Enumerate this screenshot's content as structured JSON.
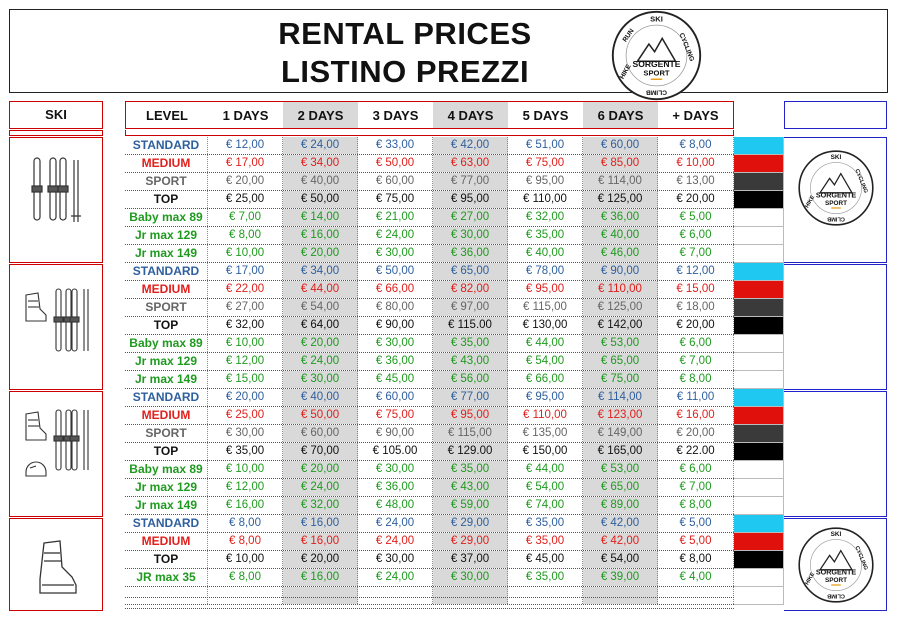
{
  "header": {
    "title_en": "RENTAL  PRICES",
    "title_it": "LISTINO  PREZZI"
  },
  "logo": {
    "top_text": "SKI",
    "right_text": "CYCLING",
    "bottom_text": "CLIMB",
    "left_text": "HIKE",
    "left_top_text": "RUN",
    "brand_line1": "SORGENTE",
    "brand_line2": "SPORT"
  },
  "side_header": "SKI",
  "columns": [
    "LEVEL",
    "1 DAYS",
    "2 DAYS",
    "3 DAYS",
    "4 DAYS",
    "5 DAYS",
    "6 DAYS",
    "+ DAYS"
  ],
  "colors": {
    "standard": "#2e5f9e",
    "medium": "#e0201c",
    "sport": "#666666",
    "top": "#111111",
    "green": "#1f9a1f",
    "swatch_cyan": "#1ec8f0",
    "swatch_red": "#e0100c",
    "swatch_dark": "#3a3a3a",
    "swatch_black": "#000000",
    "grey_column": "#d9d9d9"
  },
  "groups": [
    {
      "icon": "skis-poles-icon",
      "rows": [
        {
          "level": "STANDARD",
          "cls": "standard",
          "swatch": "cyan",
          "prices": [
            "€ 12,00",
            "€ 24,00",
            "€ 33,00",
            "€ 42,00",
            "€ 51,00",
            "€ 60,00",
            "€ 8,00"
          ]
        },
        {
          "level": "MEDIUM",
          "cls": "medium",
          "swatch": "red",
          "prices": [
            "€ 17,00",
            "€ 34,00",
            "€ 50,00",
            "€ 63,00",
            "€ 75,00",
            "€ 85,00",
            "€ 10,00"
          ]
        },
        {
          "level": "SPORT",
          "cls": "sport",
          "swatch": "dark",
          "prices": [
            "€ 20,00",
            "€ 40,00",
            "€ 60,00",
            "€ 77,00",
            "€ 95,00",
            "€ 114,00",
            "€ 13,00"
          ]
        },
        {
          "level": "TOP",
          "cls": "top",
          "swatch": "black",
          "prices": [
            "€ 25,00",
            "€ 50,00",
            "€ 75,00",
            "€ 95,00",
            "€ 110,00",
            "€ 125,00",
            "€ 20,00"
          ]
        },
        {
          "level": "Baby max 89",
          "cls": "green",
          "swatch": "",
          "prices": [
            "€ 7,00",
            "€ 14,00",
            "€ 21,00",
            "€ 27,00",
            "€ 32,00",
            "€ 36,00",
            "€ 5,00"
          ]
        },
        {
          "level": "Jr max 129",
          "cls": "green",
          "swatch": "",
          "prices": [
            "€ 8,00",
            "€ 16,00",
            "€ 24,00",
            "€ 30,00",
            "€ 35,00",
            "€ 40,00",
            "€ 6,00"
          ]
        },
        {
          "level": "Jr max 149",
          "cls": "green",
          "swatch": "",
          "prices": [
            "€ 10,00",
            "€ 20,00",
            "€ 30,00",
            "€ 36,00",
            "€ 40,00",
            "€ 46,00",
            "€ 7,00"
          ]
        }
      ]
    },
    {
      "icon": "boot-skis-poles-icon",
      "rows": [
        {
          "level": "STANDARD",
          "cls": "standard",
          "swatch": "cyan",
          "prices": [
            "€ 17,00",
            "€ 34,00",
            "€ 50,00",
            "€ 65,00",
            "€ 78,00",
            "€ 90,00",
            "€ 12,00"
          ]
        },
        {
          "level": "MEDIUM",
          "cls": "medium",
          "swatch": "red",
          "prices": [
            "€ 22,00",
            "€ 44,00",
            "€ 66,00",
            "€ 82,00",
            "€ 95,00",
            "€ 110,00",
            "€ 15,00"
          ]
        },
        {
          "level": "SPORT",
          "cls": "sport",
          "swatch": "dark",
          "prices": [
            "€ 27,00",
            "€ 54,00",
            "€ 80,00",
            "€ 97,00",
            "€ 115,00",
            "€ 125,00",
            "€ 18,00"
          ]
        },
        {
          "level": "TOP",
          "cls": "top",
          "swatch": "black",
          "prices": [
            "€ 32,00",
            "€ 64,00",
            "€ 90,00",
            "€ 115.00",
            "€ 130,00",
            "€ 142,00",
            "€ 20,00"
          ]
        },
        {
          "level": "Baby max 89",
          "cls": "green",
          "swatch": "",
          "prices": [
            "€ 10,00",
            "€ 20,00",
            "€ 30,00",
            "€ 35,00",
            "€ 44,00",
            "€ 53,00",
            "€ 6,00"
          ]
        },
        {
          "level": "Jr max 129",
          "cls": "green",
          "swatch": "",
          "prices": [
            "€ 12,00",
            "€ 24,00",
            "€ 36,00",
            "€ 43,00",
            "€ 54,00",
            "€ 65,00",
            "€ 7,00"
          ]
        },
        {
          "level": "Jr max 149",
          "cls": "green",
          "swatch": "",
          "prices": [
            "€ 15,00",
            "€ 30,00",
            "€ 45,00",
            "€ 56,00",
            "€ 66,00",
            "€ 75,00",
            "€ 8,00"
          ]
        }
      ]
    },
    {
      "icon": "boot-helmet-skis-poles-icon",
      "rows": [
        {
          "level": "STANDARD",
          "cls": "standard",
          "swatch": "cyan",
          "prices": [
            "€ 20,00",
            "€ 40,00",
            "€ 60,00",
            "€ 77,00",
            "€ 95,00",
            "€ 114,00",
            "€ 11,00"
          ]
        },
        {
          "level": "MEDIUM",
          "cls": "medium",
          "swatch": "red",
          "prices": [
            "€ 25,00",
            "€ 50,00",
            "€ 75,00",
            "€ 95,00",
            "€ 110,00",
            "€ 123,00",
            "€ 16,00"
          ]
        },
        {
          "level": "SPORT",
          "cls": "sport",
          "swatch": "dark",
          "prices": [
            "€ 30,00",
            "€ 60,00",
            "€ 90,00",
            "€ 115,00",
            "€ 135,00",
            "€ 149,00",
            "€ 20,00"
          ]
        },
        {
          "level": "TOP",
          "cls": "top",
          "swatch": "black",
          "prices": [
            "€ 35,00",
            "€ 70,00",
            "€ 105.00",
            "€ 129.00",
            "€ 150,00",
            "€ 165,00",
            "€ 22.00"
          ]
        },
        {
          "level": "Baby max 89",
          "cls": "green",
          "swatch": "",
          "prices": [
            "€ 10,00",
            "€ 20,00",
            "€ 30,00",
            "€ 35,00",
            "€ 44,00",
            "€ 53,00",
            "€ 6,00"
          ]
        },
        {
          "level": "Jr max 129",
          "cls": "green",
          "swatch": "",
          "prices": [
            "€ 12,00",
            "€ 24,00",
            "€ 36,00",
            "€ 43,00",
            "€ 54,00",
            "€ 65,00",
            "€ 7,00"
          ]
        },
        {
          "level": "Jr max 149",
          "cls": "green",
          "swatch": "",
          "prices": [
            "€ 16,00",
            "€ 32,00",
            "€ 48,00",
            "€ 59,00",
            "€ 74,00",
            "€ 89,00",
            "€ 8,00"
          ]
        }
      ]
    },
    {
      "icon": "ski-boot-icon",
      "rows": [
        {
          "level": "STANDARD",
          "cls": "standard",
          "swatch": "cyan",
          "prices": [
            "€ 8,00",
            "€ 16,00",
            "€ 24,00",
            "€ 29,00",
            "€ 35,00",
            "€ 42,00",
            "€ 5,00"
          ]
        },
        {
          "level": "MEDIUM",
          "cls": "medium",
          "swatch": "red",
          "prices": [
            "€ 8,00",
            "€ 16,00",
            "€ 24,00",
            "€ 29,00",
            "€ 35,00",
            "€ 42,00",
            "€ 5,00"
          ]
        },
        {
          "level": "TOP",
          "cls": "top",
          "swatch": "black",
          "prices": [
            "€ 10,00",
            "€ 20,00",
            "€ 30,00",
            "€ 37,00",
            "€ 45,00",
            "€ 54,00",
            "€ 8,00"
          ]
        },
        {
          "level": "JR max 35",
          "cls": "green",
          "swatch": "",
          "prices": [
            "€ 8,00",
            "€ 16,00",
            "€ 24,00",
            "€ 30,00",
            "€ 35,00",
            "€ 39,00",
            "€ 4,00"
          ]
        }
      ]
    }
  ]
}
